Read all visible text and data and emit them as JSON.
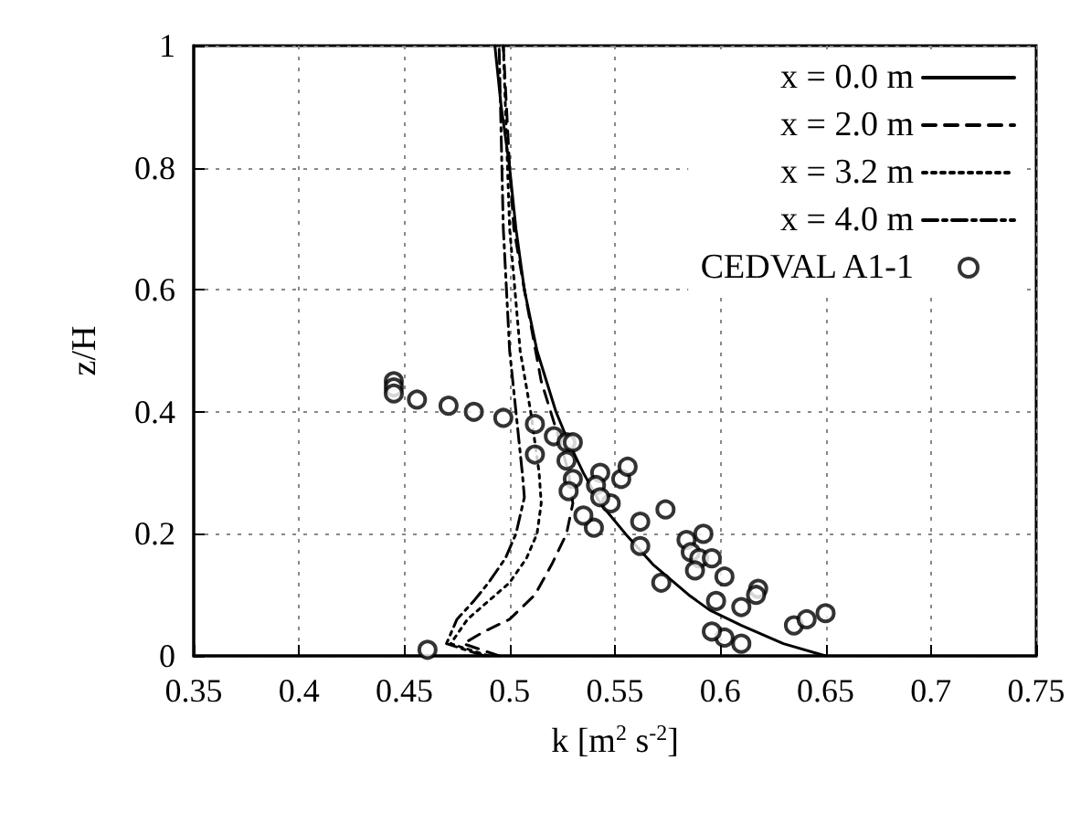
{
  "chart_data": {
    "type": "line",
    "xlabel": "k [m$^{2}$ s$^{-2}$]",
    "ylabel": "z/H",
    "xlim": [
      0.35,
      0.75
    ],
    "xticks": [
      0.35,
      0.4,
      0.45,
      0.5,
      0.55,
      0.6,
      0.65,
      0.7,
      0.75
    ],
    "ylim": [
      0,
      1
    ],
    "yticks": [
      0,
      0.2,
      0.4,
      0.6,
      0.8,
      1
    ],
    "grid": true,
    "legend": "top right",
    "series": [
      {
        "name": "x = 0.0 m",
        "color": "#000000",
        "line_style": "solid",
        "marker": "none",
        "x": [
          0.65,
          0.63,
          0.61,
          0.595,
          0.585,
          0.568,
          0.555,
          0.543,
          0.535,
          0.528,
          0.522,
          0.513,
          0.507,
          0.503,
          0.5,
          0.496,
          0.493
        ],
        "values": [
          0,
          0.02,
          0.05,
          0.075,
          0.1,
          0.15,
          0.2,
          0.25,
          0.3,
          0.35,
          0.4,
          0.5,
          0.6,
          0.7,
          0.8,
          0.9,
          1
        ]
      },
      {
        "name": "x = 2.0 m",
        "color": "#000000",
        "line_style": "dashed",
        "marker": "none",
        "x": [
          0.495,
          0.478,
          0.488,
          0.5,
          0.512,
          0.52,
          0.527,
          0.53,
          0.528,
          0.524,
          0.515,
          0.507,
          0.502,
          0.5,
          0.497
        ],
        "values": [
          0,
          0.02,
          0.04,
          0.06,
          0.1,
          0.15,
          0.2,
          0.25,
          0.3,
          0.35,
          0.45,
          0.6,
          0.7,
          0.8,
          1
        ]
      },
      {
        "name": "x = 3.2 m",
        "color": "#000000",
        "line_style": "dotted",
        "marker": "none",
        "x": [
          0.49,
          0.472,
          0.48,
          0.49,
          0.5,
          0.508,
          0.513,
          0.515,
          0.514,
          0.51,
          0.505,
          0.5,
          0.497
        ],
        "values": [
          0,
          0.02,
          0.06,
          0.09,
          0.12,
          0.16,
          0.2,
          0.25,
          0.3,
          0.4,
          0.5,
          0.7,
          1
        ]
      },
      {
        "name": "x = 4.0 m",
        "color": "#000000",
        "line_style": "dashdot",
        "marker": "none",
        "x": [
          0.488,
          0.47,
          0.475,
          0.483,
          0.49,
          0.498,
          0.503,
          0.507,
          0.506,
          0.503,
          0.5,
          0.497,
          0.495
        ],
        "values": [
          0,
          0.02,
          0.06,
          0.09,
          0.12,
          0.16,
          0.2,
          0.26,
          0.3,
          0.4,
          0.5,
          0.7,
          1
        ]
      },
      {
        "name": "CEDVAL A1-1",
        "type": "scatter",
        "color": "#000000",
        "marker": "circle",
        "x": [
          0.445,
          0.445,
          0.445,
          0.456,
          0.471,
          0.483,
          0.497,
          0.512,
          0.521,
          0.527,
          0.53,
          0.512,
          0.527,
          0.53,
          0.528,
          0.548,
          0.553,
          0.556,
          0.543,
          0.541,
          0.543,
          0.54,
          0.535,
          0.562,
          0.562,
          0.574,
          0.572,
          0.584,
          0.586,
          0.59,
          0.588,
          0.592,
          0.596,
          0.602,
          0.598,
          0.6,
          0.61,
          0.618,
          0.617,
          0.602,
          0.61,
          0.635,
          0.641,
          0.65,
          0.596,
          0.461
        ],
        "values": [
          0.45,
          0.44,
          0.43,
          0.42,
          0.41,
          0.4,
          0.39,
          0.38,
          0.36,
          0.35,
          0.35,
          0.33,
          0.32,
          0.29,
          0.27,
          0.25,
          0.29,
          0.31,
          0.3,
          0.28,
          0.26,
          0.21,
          0.23,
          0.22,
          0.18,
          0.24,
          0.12,
          0.19,
          0.17,
          0.16,
          0.14,
          0.2,
          0.16,
          0.13,
          0.09,
          null,
          0.08,
          0.11,
          0.1,
          0.03,
          0.02,
          0.05,
          0.06,
          0.07,
          0.04,
          0.01
        ]
      }
    ]
  }
}
